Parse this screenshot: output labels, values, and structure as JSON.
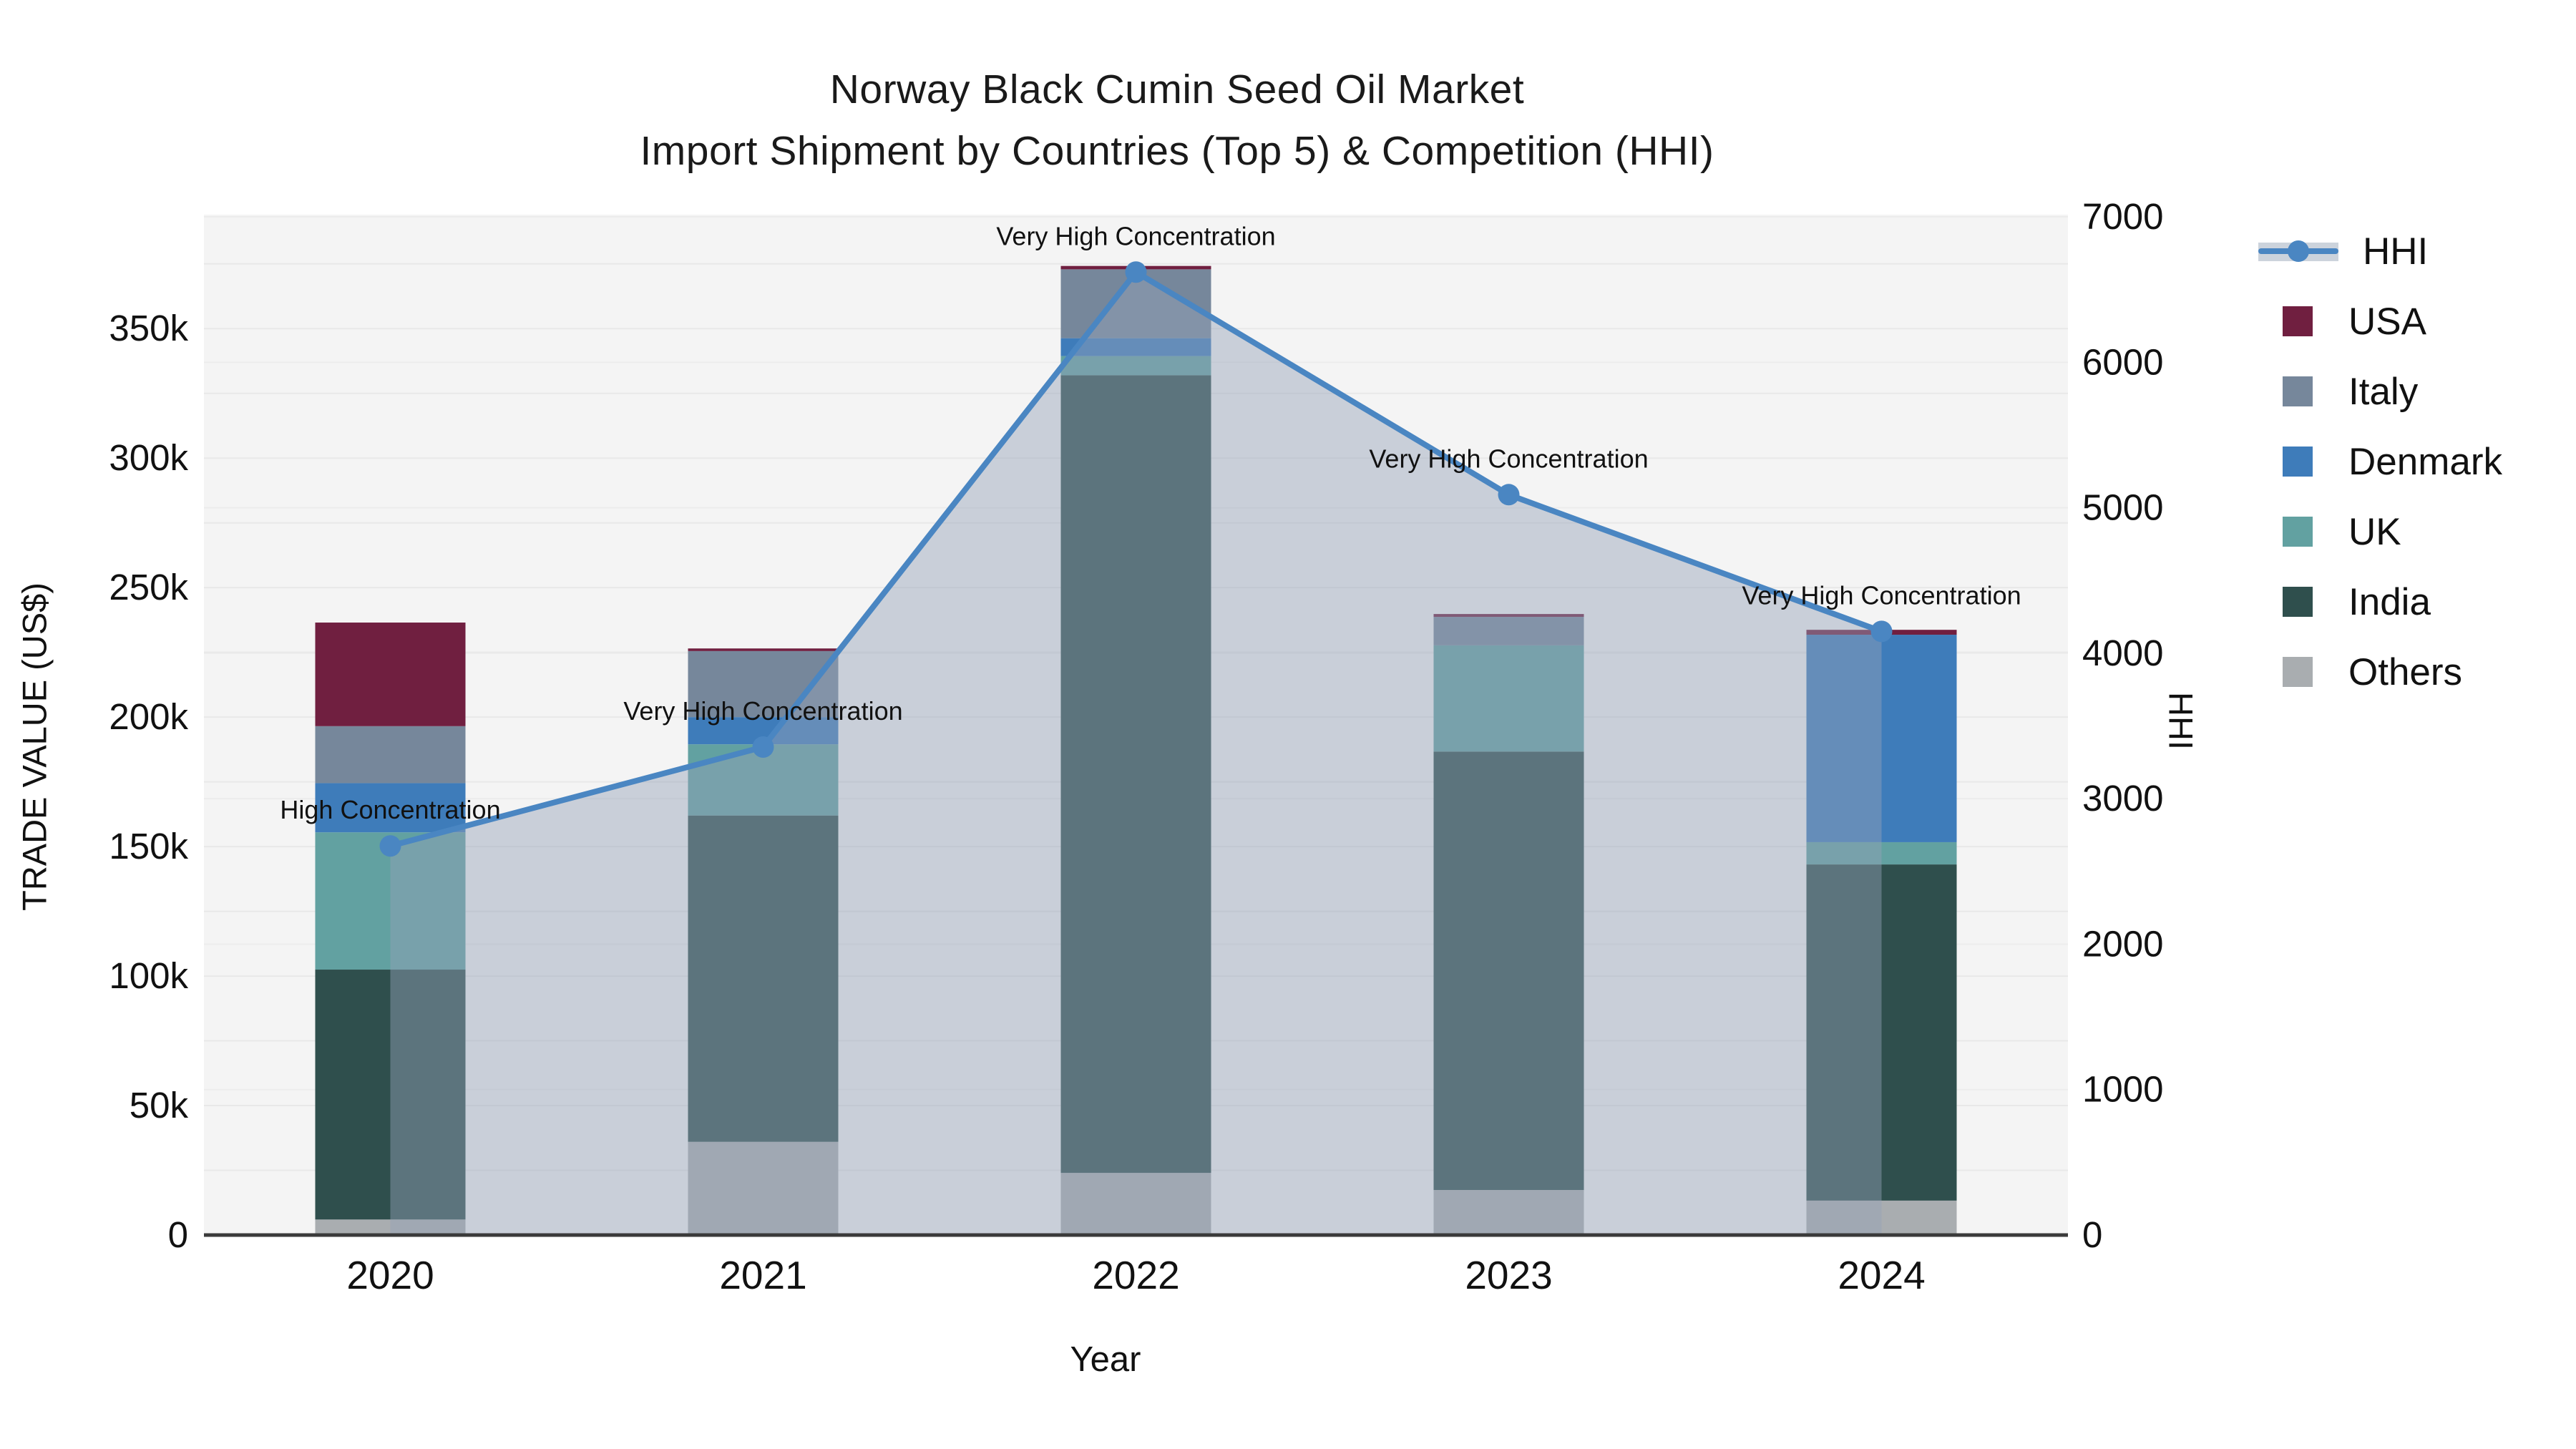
{
  "title": {
    "line1": "Norway Black Cumin Seed Oil Market",
    "line2": "Import Shipment by Countries (Top 5) & Competition (HHI)"
  },
  "chart_data": {
    "type": "bar",
    "subtype": "stacked-bars-with-line-overlay",
    "categories": [
      "2020",
      "2021",
      "2022",
      "2023",
      "2024"
    ],
    "series": [
      {
        "name": "USA",
        "color": "#701f40",
        "values": [
          40000,
          1000,
          1300,
          1100,
          1900
        ]
      },
      {
        "name": "Italy",
        "color": "#76879b",
        "values": [
          22000,
          25500,
          26600,
          11000,
          0
        ]
      },
      {
        "name": "Denmark",
        "color": "#3e7cba",
        "values": [
          19000,
          10500,
          6900,
          0,
          80100
        ]
      },
      {
        "name": "UK",
        "color": "#62a1a1",
        "values": [
          53000,
          27500,
          7400,
          41000,
          8600
        ]
      },
      {
        "name": "India",
        "color": "#2f4f4d",
        "values": [
          96500,
          126000,
          308000,
          169300,
          129800
        ]
      },
      {
        "name": "Others",
        "color": "#a9adb0",
        "values": [
          6000,
          36000,
          24000,
          17400,
          13300
        ]
      }
    ],
    "stack_order_bottom_to_top": [
      "Others",
      "India",
      "UK",
      "Denmark",
      "Italy",
      "USA"
    ],
    "bar_totals": [
      236500,
      226500,
      374200,
      239800,
      233700
    ],
    "line_series": {
      "name": "HHI",
      "color": "#4a86c2",
      "area_fill": "rgba(148,162,184,0.45)",
      "values": [
        2675,
        3355,
        6620,
        5090,
        4150
      ]
    },
    "annotations": [
      {
        "category": "2020",
        "text": "High Concentration"
      },
      {
        "category": "2021",
        "text": "Very High Concentration"
      },
      {
        "category": "2022",
        "text": "Very High Concentration"
      },
      {
        "category": "2023",
        "text": "Very High Concentration"
      },
      {
        "category": "2024",
        "text": "Very High Concentration"
      }
    ],
    "axes": {
      "left": {
        "label": "TRADE VALUE (US$)",
        "min": 0,
        "max": 350000,
        "ticks": [
          0,
          50000,
          100000,
          150000,
          200000,
          250000,
          300000,
          350000
        ],
        "tick_labels": [
          "0",
          "50k",
          "100k",
          "150k",
          "200k",
          "250k",
          "300k",
          "350k"
        ],
        "minor_grid_step": 25000
      },
      "right": {
        "label": "HHI",
        "min": 0,
        "max": 7000,
        "ticks": [
          0,
          1000,
          2000,
          3000,
          4000,
          5000,
          6000,
          7000
        ],
        "tick_labels": [
          "0",
          "1000",
          "2000",
          "3000",
          "4000",
          "5000",
          "6000",
          "7000"
        ]
      },
      "x": {
        "label": "Year"
      }
    },
    "legend": [
      {
        "name": "HHI",
        "type": "line",
        "color": "#4a86c2"
      },
      {
        "name": "USA",
        "type": "box",
        "color": "#701f40"
      },
      {
        "name": "Italy",
        "type": "box",
        "color": "#76879b"
      },
      {
        "name": "Denmark",
        "type": "box",
        "color": "#3e7cba"
      },
      {
        "name": "UK",
        "type": "box",
        "color": "#62a1a1"
      },
      {
        "name": "India",
        "type": "box",
        "color": "#2f4f4d"
      },
      {
        "name": "Others",
        "type": "box",
        "color": "#a9adb0"
      }
    ],
    "grid": true,
    "legend_position": "right-outside",
    "plot_background": "#f4f4f4"
  }
}
